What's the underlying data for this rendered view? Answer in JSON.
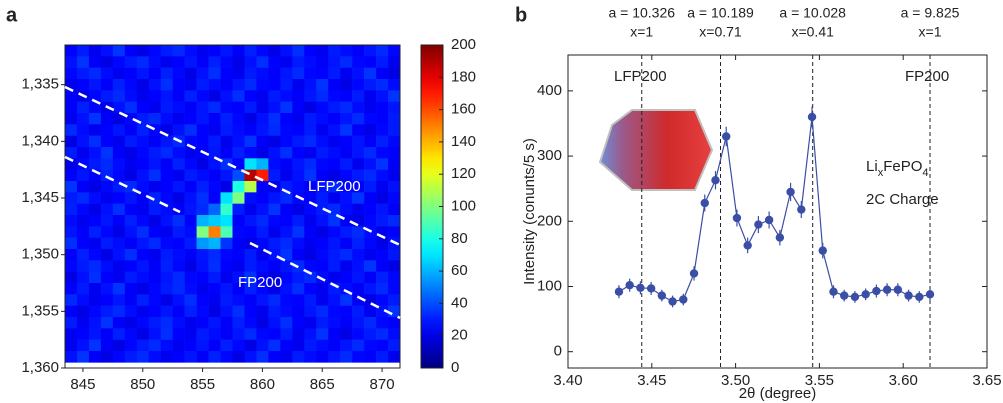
{
  "chart_data": [
    {
      "type": "heatmap",
      "panel_label": "a",
      "x": [
        844,
        845,
        846,
        847,
        848,
        849,
        850,
        851,
        852,
        853,
        854,
        855,
        856,
        857,
        858,
        859,
        860,
        861,
        862,
        863,
        864,
        865,
        866,
        867,
        868,
        869,
        870,
        871
      ],
      "y": [
        1332,
        1333,
        1334,
        1335,
        1336,
        1337,
        1338,
        1339,
        1340,
        1341,
        1342,
        1343,
        1344,
        1345,
        1346,
        1347,
        1348,
        1349,
        1350,
        1351,
        1352,
        1353,
        1354,
        1355,
        1356,
        1357,
        1358,
        1359
      ],
      "z": [
        [
          25,
          30,
          22,
          28,
          35,
          24,
          20,
          26,
          30,
          33,
          27,
          22,
          25,
          29,
          24,
          31,
          26,
          20,
          28,
          34,
          25,
          22,
          30,
          27,
          24,
          29,
          33,
          26
        ],
        [
          28,
          35,
          24,
          20,
          26,
          30,
          33,
          27,
          22,
          25,
          29,
          24,
          31,
          26,
          20,
          28,
          34,
          25,
          22,
          30,
          27,
          24,
          29,
          33,
          26,
          25,
          30,
          22
        ],
        [
          26,
          30,
          33,
          27,
          22,
          25,
          29,
          24,
          31,
          26,
          20,
          28,
          34,
          25,
          22,
          30,
          27,
          24,
          29,
          33,
          26,
          25,
          30,
          22,
          28,
          35,
          24,
          20
        ],
        [
          22,
          25,
          29,
          24,
          31,
          26,
          20,
          28,
          34,
          25,
          22,
          30,
          27,
          24,
          29,
          33,
          26,
          25,
          30,
          22,
          28,
          35,
          24,
          20,
          26,
          30,
          33,
          27
        ],
        [
          24,
          20,
          26,
          30,
          33,
          27,
          22,
          25,
          29,
          24,
          31,
          26,
          20,
          28,
          34,
          25,
          22,
          30,
          27,
          24,
          29,
          33,
          26,
          25,
          30,
          22,
          28,
          35
        ],
        [
          24,
          31,
          26,
          20,
          28,
          34,
          25,
          22,
          30,
          27,
          24,
          29,
          33,
          26,
          25,
          30,
          22,
          28,
          35,
          24,
          20,
          26,
          30,
          33,
          27,
          22,
          25,
          29
        ],
        [
          22,
          28,
          35,
          24,
          20,
          26,
          30,
          33,
          27,
          22,
          25,
          29,
          24,
          31,
          26,
          20,
          28,
          34,
          25,
          22,
          30,
          27,
          24,
          29,
          33,
          26,
          25,
          30
        ],
        [
          33,
          27,
          22,
          25,
          29,
          24,
          31,
          26,
          20,
          28,
          34,
          25,
          22,
          30,
          27,
          24,
          29,
          33,
          26,
          25,
          30,
          22,
          28,
          35,
          24,
          20,
          26,
          30
        ],
        [
          20,
          28,
          34,
          25,
          22,
          30,
          27,
          24,
          29,
          33,
          26,
          25,
          30,
          22,
          28,
          35,
          24,
          20,
          26,
          30,
          33,
          27,
          22,
          25,
          29,
          24,
          31,
          26
        ],
        [
          30,
          22,
          28,
          35,
          24,
          20,
          26,
          30,
          33,
          27,
          22,
          25,
          29,
          24,
          31,
          26,
          20,
          28,
          34,
          25,
          22,
          30,
          27,
          24,
          29,
          33,
          26,
          25
        ],
        [
          20,
          26,
          30,
          33,
          27,
          22,
          25,
          29,
          24,
          31,
          26,
          20,
          28,
          34,
          25,
          70,
          60,
          27,
          24,
          29,
          33,
          26,
          25,
          30,
          22,
          28,
          35,
          24
        ],
        [
          25,
          29,
          24,
          31,
          26,
          20,
          28,
          34,
          25,
          22,
          30,
          27,
          24,
          29,
          40,
          190,
          170,
          30,
          22,
          28,
          35,
          24,
          20,
          26,
          30,
          33,
          27,
          22
        ],
        [
          35,
          24,
          20,
          26,
          30,
          33,
          27,
          22,
          25,
          29,
          24,
          31,
          26,
          20,
          80,
          110,
          25,
          22,
          30,
          27,
          24,
          29,
          33,
          26,
          25,
          30,
          22,
          28
        ],
        [
          30,
          33,
          27,
          22,
          25,
          29,
          24,
          31,
          26,
          20,
          28,
          34,
          25,
          70,
          100,
          27,
          24,
          29,
          33,
          26,
          25,
          30,
          22,
          28,
          35,
          24,
          20,
          26
        ],
        [
          31,
          26,
          20,
          28,
          34,
          25,
          22,
          30,
          27,
          24,
          29,
          33,
          45,
          85,
          30,
          22,
          28,
          35,
          24,
          20,
          26,
          30,
          33,
          27,
          22,
          25,
          29,
          24
        ],
        [
          27,
          22,
          25,
          29,
          24,
          31,
          26,
          20,
          28,
          34,
          25,
          60,
          65,
          70,
          24,
          29,
          33,
          26,
          25,
          30,
          22,
          28,
          35,
          24,
          20,
          26,
          30,
          33
        ],
        [
          29,
          24,
          31,
          26,
          20,
          28,
          34,
          25,
          22,
          30,
          27,
          100,
          150,
          90,
          26,
          25,
          30,
          22,
          28,
          35,
          24,
          20,
          26,
          30,
          33,
          27,
          22,
          25
        ],
        [
          34,
          25,
          22,
          30,
          27,
          24,
          29,
          33,
          26,
          25,
          30,
          55,
          60,
          35,
          24,
          20,
          26,
          30,
          33,
          27,
          22,
          25,
          29,
          24,
          31,
          26,
          20,
          28
        ],
        [
          24,
          31,
          26,
          20,
          28,
          34,
          25,
          22,
          30,
          27,
          24,
          29,
          33,
          26,
          25,
          30,
          22,
          28,
          35,
          24,
          20,
          26,
          30,
          33,
          27,
          22,
          25,
          29
        ],
        [
          26,
          30,
          33,
          27,
          22,
          25,
          29,
          24,
          31,
          26,
          20,
          28,
          34,
          25,
          22,
          30,
          27,
          24,
          29,
          33,
          26,
          25,
          30,
          22,
          28,
          35,
          24,
          20
        ],
        [
          20,
          28,
          34,
          25,
          22,
          30,
          27,
          24,
          29,
          33,
          26,
          25,
          30,
          22,
          28,
          35,
          24,
          20,
          26,
          30,
          33,
          27,
          22,
          25,
          29,
          24,
          31,
          26
        ],
        [
          25,
          30,
          22,
          28,
          35,
          24,
          20,
          26,
          30,
          33,
          27,
          22,
          25,
          29,
          24,
          31,
          26,
          20,
          28,
          34,
          25,
          22,
          30,
          27,
          24,
          29,
          33,
          26
        ],
        [
          33,
          27,
          22,
          25,
          29,
          24,
          31,
          26,
          20,
          28,
          34,
          25,
          22,
          30,
          27,
          24,
          29,
          33,
          26,
          25,
          30,
          22,
          28,
          35,
          24,
          20,
          26,
          30
        ],
        [
          24,
          20,
          26,
          30,
          33,
          27,
          22,
          25,
          29,
          24,
          31,
          26,
          20,
          28,
          34,
          25,
          22,
          30,
          27,
          24,
          29,
          33,
          26,
          25,
          30,
          22,
          28,
          35
        ],
        [
          30,
          22,
          28,
          35,
          24,
          20,
          26,
          30,
          33,
          27,
          22,
          25,
          29,
          24,
          31,
          26,
          20,
          28,
          34,
          25,
          22,
          30,
          27,
          24,
          29,
          33,
          26,
          25
        ],
        [
          22,
          25,
          29,
          24,
          31,
          26,
          20,
          28,
          34,
          25,
          22,
          30,
          27,
          24,
          29,
          33,
          26,
          25,
          30,
          22,
          28,
          35,
          24,
          20,
          26,
          30,
          33,
          27
        ],
        [
          22,
          28,
          35,
          24,
          20,
          26,
          30,
          33,
          27,
          22,
          25,
          29,
          24,
          31,
          26,
          20,
          28,
          34,
          25,
          22,
          30,
          27,
          24,
          29,
          33,
          26,
          25,
          30
        ],
        [
          28,
          35,
          24,
          20,
          26,
          30,
          33,
          27,
          22,
          25,
          29,
          24,
          31,
          26,
          20,
          28,
          34,
          25,
          22,
          30,
          27,
          24,
          29,
          33,
          26,
          25,
          30,
          22
        ]
      ],
      "xlim": [
        843.5,
        871.5
      ],
      "ylim": [
        1331.5,
        1360
      ],
      "y_inverted": true,
      "xticks": [
        845,
        850,
        855,
        860,
        865,
        870
      ],
      "yticks": [
        {
          "value": 1335,
          "label": "1,335"
        },
        {
          "value": 1340,
          "label": "1,340"
        },
        {
          "value": 1345,
          "label": "1,345"
        },
        {
          "value": 1350,
          "label": "1,350"
        },
        {
          "value": 1355,
          "label": "1,355"
        },
        {
          "value": 1360,
          "label": "1,360"
        }
      ],
      "colormap": "jet",
      "clim": [
        0,
        200
      ],
      "colorbar_ticks": [
        0,
        20,
        40,
        60,
        80,
        100,
        120,
        140,
        160,
        180,
        200
      ],
      "annotations": [
        "LFP200",
        "FP200"
      ]
    },
    {
      "type": "scatter",
      "panel_label": "b",
      "line": true,
      "color": "#3a4ea6",
      "x": [
        3.4304,
        3.4368,
        3.4432,
        3.4496,
        3.456,
        3.4624,
        3.4688,
        3.4752,
        3.4816,
        3.488,
        3.4944,
        3.5008,
        3.5072,
        3.5136,
        3.52,
        3.5264,
        3.5328,
        3.5392,
        3.5456,
        3.552,
        3.5584,
        3.5648,
        3.5712,
        3.5776,
        3.584,
        3.5904,
        3.5968,
        3.6032,
        3.6096,
        3.616
      ],
      "values": [
        92,
        102,
        98,
        97,
        86,
        77,
        80,
        120,
        228,
        263,
        330,
        205,
        163,
        195,
        202,
        175,
        245,
        218,
        360,
        155,
        92,
        86,
        84,
        88,
        93,
        95,
        95,
        86,
        84,
        88
      ],
      "errors": [
        10,
        10,
        10,
        10,
        9,
        9,
        9,
        11,
        13,
        14,
        15,
        13,
        12,
        13,
        13,
        12,
        14,
        13,
        16,
        12,
        10,
        9,
        9,
        9,
        10,
        10,
        10,
        9,
        9,
        9
      ],
      "xlim": [
        3.4,
        3.65
      ],
      "ylim": [
        -25,
        455
      ],
      "xticks": [
        {
          "value": 3.4,
          "label": "3.40"
        },
        {
          "value": 3.45,
          "label": "3.45"
        },
        {
          "value": 3.5,
          "label": "3.50"
        },
        {
          "value": 3.55,
          "label": "3.55"
        },
        {
          "value": 3.6,
          "label": "3.60"
        },
        {
          "value": 3.65,
          "label": "3.65"
        }
      ],
      "yticks": [
        0,
        100,
        200,
        300,
        400
      ],
      "xlabel": "2θ (degree)",
      "ylabel": "Intensity (conunts/5 s)",
      "reference_lines": [
        {
          "x": 3.444,
          "a_label": "a = 10.326",
          "x_label": "x=1"
        },
        {
          "x": 3.491,
          "a_label": "a = 10.189",
          "x_label": "x=0.71"
        },
        {
          "x": 3.546,
          "a_label": "a = 10.028",
          "x_label": "x=0.41"
        },
        {
          "x": 3.616,
          "a_label": "a = 9.825",
          "x_label": "x=1"
        }
      ],
      "peak_labels": [
        "LFP200",
        "FP200"
      ],
      "compound": [
        "Li",
        "x",
        "FePO",
        "4"
      ],
      "condition": "2C Charge"
    }
  ]
}
